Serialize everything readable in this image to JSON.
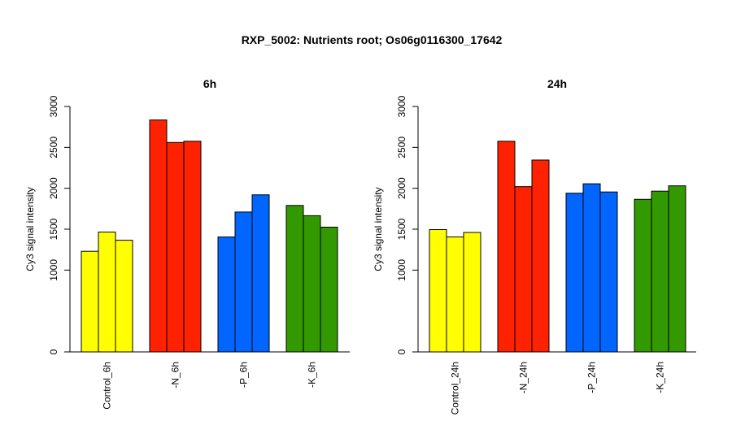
{
  "main_title": "RXP_5002: Nutrients root; Os06g0116300_17642",
  "chart_data": [
    {
      "type": "bar",
      "title": "6h",
      "ylabel": "Cy3 signal intensity",
      "ylim": [
        0,
        3000
      ],
      "yticks": [
        0,
        1000,
        1500,
        2000,
        2500,
        3000
      ],
      "groups": [
        {
          "label": "Control_6h",
          "color": "#FFFF00",
          "values": [
            1230,
            1465,
            1365
          ]
        },
        {
          "label": "-N_6h",
          "color": "#FF2200",
          "values": [
            2835,
            2560,
            2575
          ]
        },
        {
          "label": "-P_6h",
          "color": "#0066FF",
          "values": [
            1405,
            1710,
            1920
          ]
        },
        {
          "label": "-K_6h",
          "color": "#339900",
          "values": [
            1790,
            1665,
            1525
          ]
        }
      ]
    },
    {
      "type": "bar",
      "title": "24h",
      "ylabel": "Cy3 signal intensity",
      "ylim": [
        0,
        3000
      ],
      "yticks": [
        0,
        1000,
        1500,
        2000,
        2500,
        3000
      ],
      "groups": [
        {
          "label": "Control_24h",
          "color": "#FFFF00",
          "values": [
            1495,
            1405,
            1460
          ]
        },
        {
          "label": "-N_24h",
          "color": "#FF2200",
          "values": [
            2575,
            2020,
            2345
          ]
        },
        {
          "label": "-P_24h",
          "color": "#0066FF",
          "values": [
            1940,
            2055,
            1955
          ]
        },
        {
          "label": "-K_24h",
          "color": "#339900",
          "values": [
            1865,
            1965,
            2030
          ]
        }
      ]
    }
  ]
}
